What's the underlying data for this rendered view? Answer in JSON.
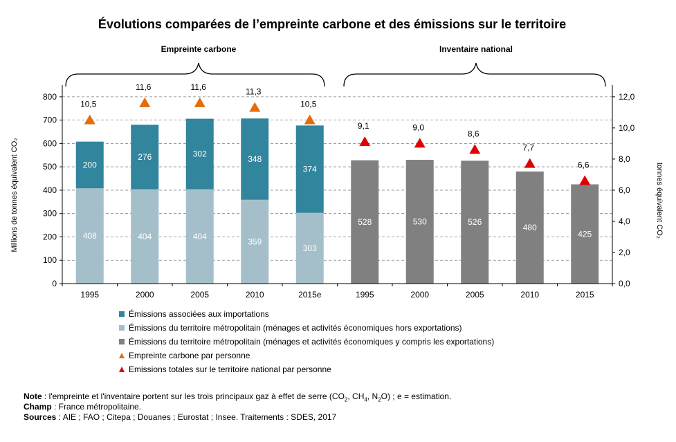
{
  "chart_data": {
    "type": "bar",
    "title": "Évolutions comparées de l’empreinte carbone et des émissions sur le territoire",
    "groups": [
      {
        "label": "Empreinte carbone",
        "start": 0,
        "end": 4
      },
      {
        "label": "Inventaire national",
        "start": 5,
        "end": 9
      }
    ],
    "categories": [
      "1995",
      "2000",
      "2005",
      "2010",
      "2015e",
      "1995",
      "2000",
      "2005",
      "2010",
      "2015"
    ],
    "series": [
      {
        "name": "Émissions associées aux importations",
        "type": "bar",
        "axis": "left",
        "color": "#31859c",
        "values": [
          200,
          276,
          302,
          348,
          374,
          null,
          null,
          null,
          null,
          null
        ]
      },
      {
        "name": "Émissions du territoire métropolitain (ménages et activités économiques hors exportations)",
        "type": "bar",
        "axis": "left",
        "color": "#a5bfca",
        "values": [
          408,
          404,
          404,
          359,
          303,
          null,
          null,
          null,
          null,
          null
        ]
      },
      {
        "name": "Émissions du territoire métropolitain (ménages et activités économiques y compris  les exportations)",
        "type": "bar",
        "axis": "left",
        "color": "#808080",
        "values": [
          null,
          null,
          null,
          null,
          null,
          528,
          530,
          526,
          480,
          425
        ]
      },
      {
        "name": "Empreinte carbone par personne",
        "type": "scatter",
        "axis": "right",
        "color": "#e46c0a",
        "marker": "triangle",
        "values": [
          10.5,
          11.6,
          11.6,
          11.3,
          10.5,
          null,
          null,
          null,
          null,
          null
        ],
        "labels": [
          "10,5",
          "11,6",
          "11,6",
          "11,3",
          "10,5",
          "",
          "",
          "",
          "",
          ""
        ]
      },
      {
        "name": "Emissions totales sur le territoire national par personne",
        "type": "scatter",
        "axis": "right",
        "color": "#e00000",
        "marker": "triangle",
        "values": [
          null,
          null,
          null,
          null,
          null,
          9.1,
          9.0,
          8.6,
          7.7,
          6.6
        ],
        "labels": [
          "",
          "",
          "",
          "",
          "",
          "9,1",
          "9,0",
          "8,6",
          "7,7",
          "6,6"
        ]
      }
    ],
    "ylabel_left": "Millions de tonnes équivalent  CO₂",
    "ylabel_right": "tonnes équivalent  CO₂",
    "ylim_left": [
      0,
      850
    ],
    "ylim_right": [
      0,
      12.75
    ],
    "yticks_left": [
      "0",
      "100",
      "200",
      "300",
      "400",
      "500",
      "600",
      "700",
      "800"
    ],
    "yticks_right": [
      "0,0",
      "2,0",
      "4,0",
      "6,0",
      "8,0",
      "10,0",
      "12,0"
    ],
    "grid": true,
    "legend_position": "bottom"
  },
  "notes": {
    "note_label": "Note",
    "note_text_1": " : l'empreinte  et l'inventaire  portent  sur les trois principaux  gaz à effet de serre (CO",
    "note_sub_1": "2",
    "note_text_2": ", CH",
    "note_sub_2": "4",
    "note_text_3": ", N",
    "note_sub_3": "2",
    "note_text_4": "O)  ;  e = estimation.",
    "champ_label": "Champ",
    "champ_text": " : France  métropolitaine.",
    "sources_label": "Sources",
    "sources_text": " : AIE ; FAO ; Citepa ; Douanes  ; Eurostat ; Insee. Traitements  : SDES, 2017"
  }
}
